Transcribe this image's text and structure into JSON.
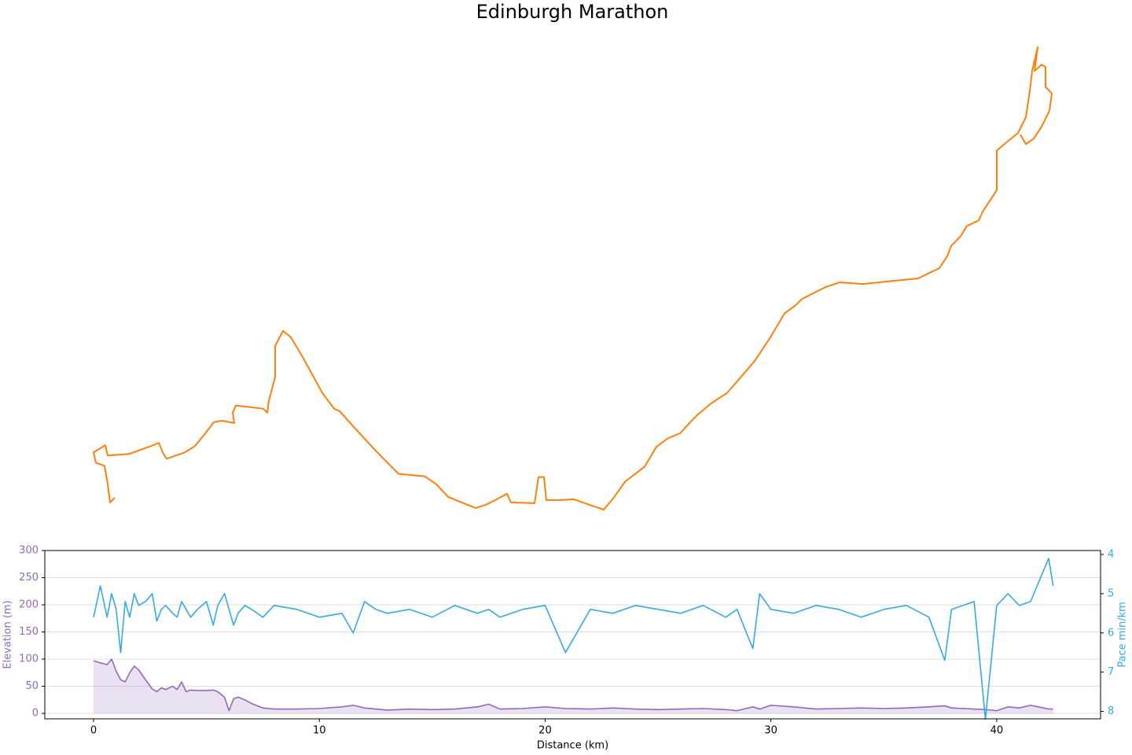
{
  "chart_data": [
    {
      "type": "route",
      "title": "Edinburgh Marathon",
      "color": "#ff7f0e",
      "x": [
        146,
        140,
        137,
        133,
        122,
        119,
        134,
        137,
        164,
        192,
        202,
        207,
        212,
        235,
        248,
        262,
        272,
        282,
        298,
        296,
        300,
        335,
        340,
        342,
        350,
        350,
        360,
        370,
        385,
        410,
        425,
        432,
        450,
        480,
        507,
        540,
        555,
        570,
        585,
        605,
        618,
        630,
        645,
        650,
        680,
        685,
        692,
        695,
        712,
        730,
        750,
        768,
        780,
        795,
        820,
        835,
        850,
        865,
        880,
        888,
        905,
        925,
        940,
        960,
        980,
        998,
        1012,
        1020,
        1050,
        1068,
        1098,
        1128,
        1168,
        1195,
        1205,
        1210,
        1222,
        1230,
        1245,
        1250,
        1268,
        1268,
        1280,
        1295,
        1305,
        1310,
        1313,
        1320,
        1316,
        1325,
        1330,
        1330,
        1338,
        1335,
        1325,
        1315,
        1305,
        1298
      ],
      "y": [
        73,
        67,
        90,
        113,
        117,
        130,
        139,
        126,
        128,
        138,
        142,
        130,
        122,
        130,
        138,
        155,
        168,
        170,
        167,
        180,
        189,
        185,
        180,
        195,
        225,
        264,
        283,
        275,
        250,
        205,
        185,
        182,
        162,
        130,
        103,
        100,
        90,
        74,
        68,
        60,
        64,
        70,
        78,
        67,
        66,
        99,
        99,
        70,
        70,
        71,
        64,
        58,
        72,
        93,
        112,
        137,
        148,
        154,
        170,
        178,
        192,
        205,
        222,
        245,
        275,
        305,
        315,
        323,
        338,
        344,
        342,
        345,
        349,
        362,
        377,
        390,
        402,
        415,
        422,
        433,
        460,
        510,
        520,
        532,
        552,
        585,
        610,
        640,
        610,
        618,
        615,
        590,
        582,
        560,
        540,
        525,
        518,
        530
      ]
    },
    {
      "type": "line",
      "x_label": "Distance (km)",
      "y_label": "Elevation (m)",
      "y2_label": "Pace min/km",
      "x": [
        0,
        0.3,
        0.6,
        0.8,
        1.0,
        1.2,
        1.4,
        1.6,
        1.8,
        2.0,
        2.3,
        2.6,
        2.8,
        3.0,
        3.2,
        3.5,
        3.7,
        3.9,
        4.1,
        4.3,
        4.6,
        5.0,
        5.3,
        5.5,
        5.8,
        6.0,
        6.2,
        6.4,
        6.7,
        7.0,
        7.5,
        8,
        9,
        10,
        11,
        11.5,
        12,
        12.5,
        13,
        14,
        15,
        16,
        17,
        17.5,
        18,
        19,
        20,
        20.9,
        22,
        23,
        24,
        25,
        26,
        27,
        28,
        28.5,
        29.2,
        29.5,
        30,
        31,
        32,
        33,
        34,
        35,
        36,
        37,
        37.7,
        38,
        39,
        39.5,
        40,
        40.5,
        41,
        41.5,
        42.3,
        42.5
      ],
      "series": [
        {
          "name": "Elevation",
          "color": "#9467bd",
          "fill": true,
          "values": [
            97,
            93,
            90,
            100,
            78,
            62,
            58,
            75,
            87,
            80,
            62,
            45,
            40,
            47,
            44,
            50,
            44,
            58,
            40,
            43,
            42,
            42,
            43,
            40,
            30,
            5,
            27,
            30,
            25,
            18,
            10,
            8,
            8,
            9,
            12,
            15,
            10,
            8,
            6,
            8,
            7,
            8,
            12,
            17,
            8,
            9,
            12,
            9,
            8,
            10,
            8,
            7,
            8,
            9,
            7,
            5,
            12,
            8,
            15,
            12,
            8,
            9,
            10,
            9,
            10,
            12,
            14,
            10,
            8,
            7,
            5,
            12,
            10,
            15,
            8,
            8
          ]
        },
        {
          "name": "Pace",
          "color": "#36a9e1",
          "axis": "y2",
          "values": [
            5.6,
            4.8,
            5.6,
            5.0,
            5.4,
            6.5,
            5.2,
            5.6,
            5.0,
            5.3,
            5.2,
            5.0,
            5.7,
            5.4,
            5.3,
            5.5,
            5.6,
            5.2,
            5.4,
            5.6,
            5.4,
            5.2,
            5.8,
            5.3,
            5.0,
            5.4,
            5.8,
            5.5,
            5.3,
            5.4,
            5.6,
            5.3,
            5.4,
            5.6,
            5.5,
            6.0,
            5.2,
            5.4,
            5.5,
            5.4,
            5.6,
            5.3,
            5.5,
            5.4,
            5.6,
            5.4,
            5.3,
            6.5,
            5.4,
            5.5,
            5.3,
            5.4,
            5.5,
            5.3,
            5.6,
            5.4,
            6.4,
            5.0,
            5.4,
            5.5,
            5.3,
            5.4,
            5.6,
            5.4,
            5.3,
            5.6,
            6.7,
            5.4,
            5.2,
            8.2,
            5.3,
            5.0,
            5.3,
            5.2,
            4.1,
            4.8
          ]
        }
      ],
      "xlim": [
        -2.16,
        44.6
      ],
      "xticks": [
        0,
        10,
        20,
        30,
        40
      ],
      "ylim": [
        -10,
        300
      ],
      "yticks": [
        0,
        50,
        100,
        150,
        200,
        250,
        300
      ],
      "y2lim": [
        3.9,
        8.19
      ],
      "y2ticks": [
        4,
        5,
        6,
        7,
        8
      ],
      "y2_inverted": true,
      "grid": true
    }
  ]
}
